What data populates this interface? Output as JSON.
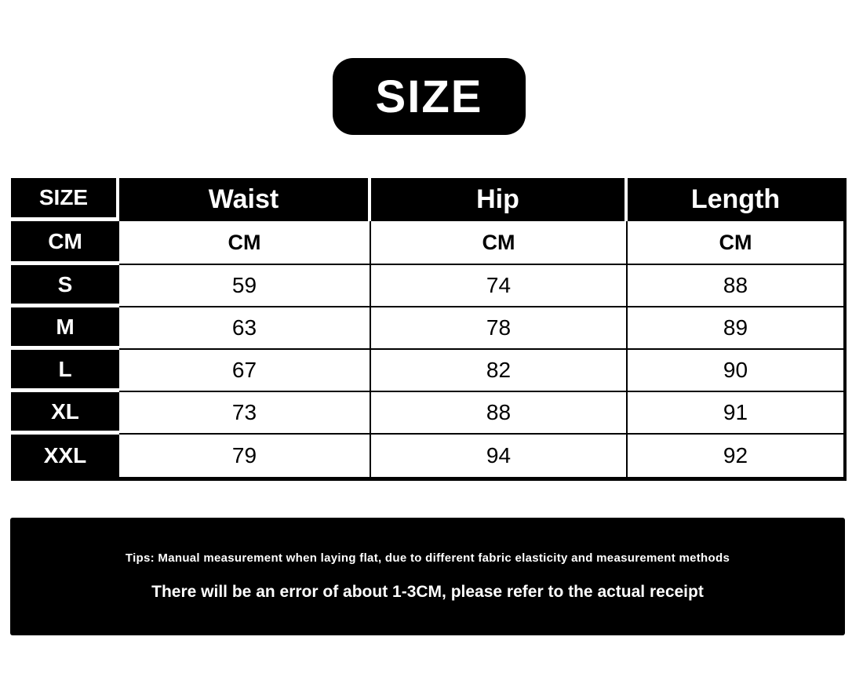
{
  "badge": {
    "label": "SIZE"
  },
  "size_table": {
    "header": {
      "size": "SIZE",
      "waist": "Waist",
      "hip": "Hip",
      "length": "Length"
    },
    "unit_row": {
      "size": "CM",
      "waist": "CM",
      "hip": "CM",
      "length": "CM"
    },
    "rows": [
      {
        "size": "S",
        "waist": "59",
        "hip": "74",
        "length": "88"
      },
      {
        "size": "M",
        "waist": "63",
        "hip": "78",
        "length": "89"
      },
      {
        "size": "L",
        "waist": "67",
        "hip": "82",
        "length": "90"
      },
      {
        "size": "XL",
        "waist": "73",
        "hip": "88",
        "length": "91"
      },
      {
        "size": "XXL",
        "waist": "79",
        "hip": "94",
        "length": "92"
      }
    ]
  },
  "footer": {
    "tips_line": "Tips: Manual measurement when laying flat, due to different fabric elasticity and measurement methods",
    "error_line": "There will be an error of about 1-3CM, please refer to the actual receipt"
  },
  "colors": {
    "primary_black": "#000000",
    "text_on_dark": "#ffffff",
    "text_on_light": "#000000",
    "background": "#ffffff"
  },
  "chart_data": {
    "type": "table",
    "title": "SIZE",
    "unit": "CM",
    "columns": [
      "SIZE",
      "Waist",
      "Hip",
      "Length"
    ],
    "rows": [
      [
        "S",
        59,
        74,
        88
      ],
      [
        "M",
        63,
        78,
        89
      ],
      [
        "L",
        67,
        82,
        90
      ],
      [
        "XL",
        73,
        88,
        91
      ],
      [
        "XXL",
        79,
        94,
        92
      ]
    ],
    "notes": [
      "Tips: Manual measurement when laying flat, due to different fabric elasticity and measurement methods",
      "There will be an error of about 1-3CM, please refer to the actual receipt"
    ]
  }
}
